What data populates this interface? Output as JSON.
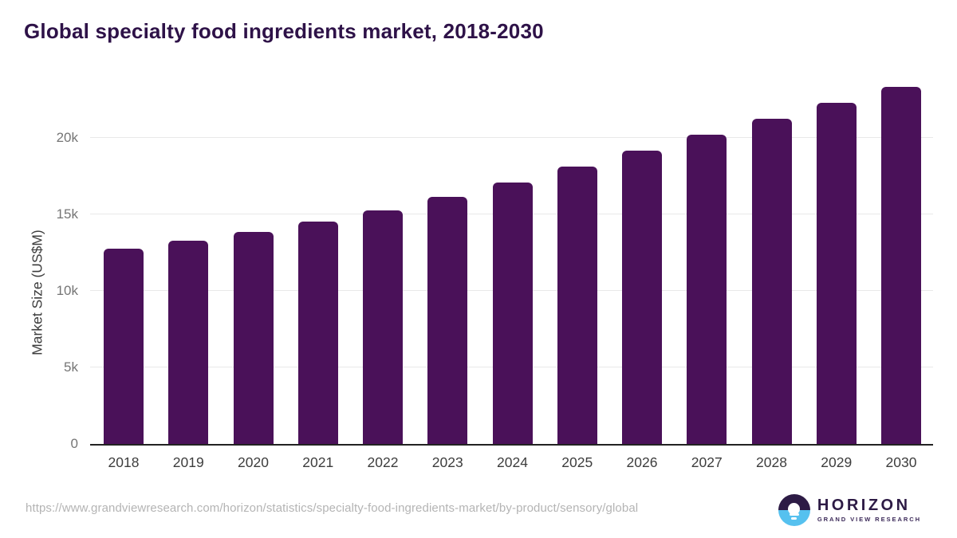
{
  "header": {
    "title": "Global specialty food ingredients market, 2018-2030"
  },
  "chart_data": {
    "type": "bar",
    "title": "Global specialty food ingredients market, 2018-2030",
    "categories": [
      "2018",
      "2019",
      "2020",
      "2021",
      "2022",
      "2023",
      "2024",
      "2025",
      "2026",
      "2027",
      "2028",
      "2029",
      "2030"
    ],
    "values": [
      12750,
      13300,
      13850,
      14550,
      15250,
      16150,
      17100,
      18150,
      19150,
      20200,
      21250,
      22300,
      23350
    ],
    "xlabel": "",
    "ylabel": "Market Size (US$M)",
    "ylim": [
      0,
      23950
    ],
    "yticks": [
      {
        "label": "0",
        "value": 0
      },
      {
        "label": "5k",
        "value": 5000
      },
      {
        "label": "10k",
        "value": 10000
      },
      {
        "label": "15k",
        "value": 15000
      },
      {
        "label": "20k",
        "value": 20000
      }
    ],
    "grid": true,
    "legend": false,
    "bar_color": "#4a1159"
  },
  "footer": {
    "source_url": "https://www.grandviewresearch.com/horizon/statistics/specialty-food-ingredients-market/by-product/sensory/global",
    "logo": {
      "icon": "horizon-sunrise-icon",
      "brand": "HORIZON",
      "sub_brand": "GRAND VIEW RESEARCH"
    }
  },
  "colors": {
    "title": "#2e1248",
    "bar": "#4a1159",
    "gridline": "#e8e8e8",
    "axis_line": "#222222",
    "tick_label": "#757575",
    "category_label": "#3d3d3d",
    "url_text": "#b4b4b4",
    "logo_purple": "#2d1b45",
    "logo_blue": "#56c1ef"
  }
}
